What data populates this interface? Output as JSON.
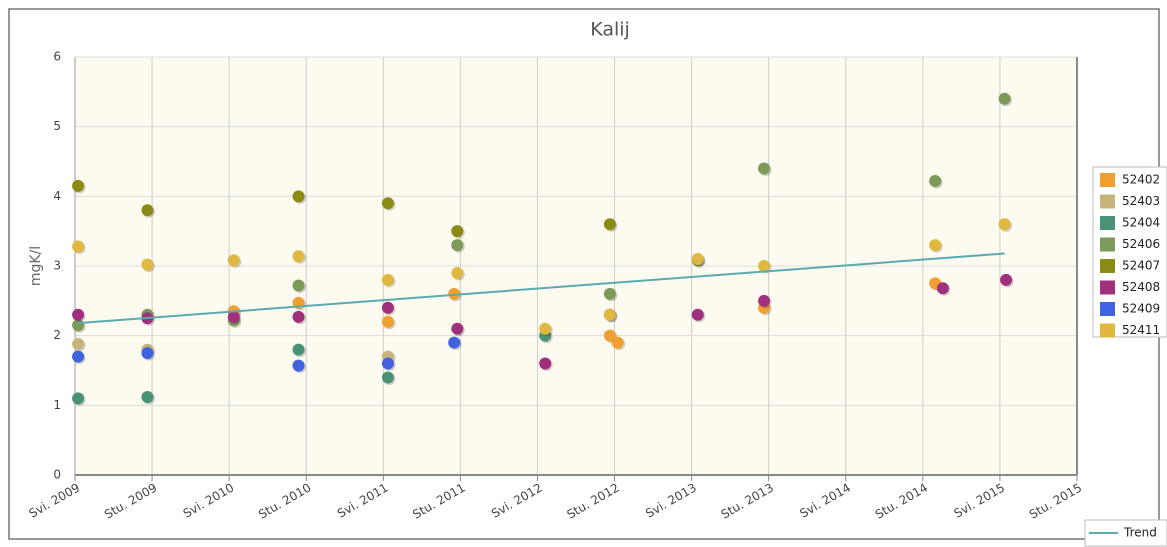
{
  "chart_data": {
    "type": "scatter",
    "title": "Kalij",
    "y_label": "mgK/l",
    "xlim": [
      2009.33,
      2015.83
    ],
    "xticks": [
      {
        "value": 2009.33,
        "label": "Svi. 2009"
      },
      {
        "value": 2009.83,
        "label": "Stu. 2009"
      },
      {
        "value": 2010.33,
        "label": "Svi. 2010"
      },
      {
        "value": 2010.83,
        "label": "Stu. 2010"
      },
      {
        "value": 2011.33,
        "label": "Svi. 2011"
      },
      {
        "value": 2011.83,
        "label": "Stu. 2011"
      },
      {
        "value": 2012.33,
        "label": "Svi. 2012"
      },
      {
        "value": 2012.83,
        "label": "Stu. 2012"
      },
      {
        "value": 2013.33,
        "label": "Svi. 2013"
      },
      {
        "value": 2013.83,
        "label": "Stu. 2013"
      },
      {
        "value": 2014.33,
        "label": "Svi. 2014"
      },
      {
        "value": 2014.83,
        "label": "Stu. 2014"
      },
      {
        "value": 2015.33,
        "label": "Svi. 2015"
      },
      {
        "value": 2015.83,
        "label": "Stu. 2015"
      }
    ],
    "ylim": [
      0,
      6
    ],
    "yticks": [
      0,
      1,
      2,
      3,
      4,
      5,
      6
    ],
    "grid": true,
    "series": [
      {
        "name": "52402",
        "color": "#f0a030",
        "x": [
          2010.36,
          2010.78,
          2011.36,
          2011.79,
          2012.8,
          2012.85,
          2013.8,
          2014.91
        ],
        "values": [
          2.35,
          2.47,
          2.2,
          2.6,
          2.0,
          1.9,
          2.4,
          2.75
        ]
      },
      {
        "name": "52403",
        "color": "#c8b47a",
        "x": [
          2009.35,
          2009.8,
          2011.36
        ],
        "values": [
          1.88,
          1.8,
          1.7
        ]
      },
      {
        "name": "52404",
        "color": "#4a9275",
        "x": [
          2009.35,
          2009.8,
          2010.78,
          2011.36,
          2012.38
        ],
        "values": [
          1.1,
          1.12,
          1.8,
          1.4,
          2.0
        ]
      },
      {
        "name": "52406",
        "color": "#7c9a58",
        "x": [
          2009.35,
          2009.8,
          2010.36,
          2010.78,
          2011.81,
          2012.8,
          2013.37,
          2013.8,
          2014.91,
          2015.36
        ],
        "values": [
          2.15,
          2.3,
          2.22,
          2.72,
          3.3,
          2.6,
          3.08,
          4.4,
          4.22,
          5.4
        ]
      },
      {
        "name": "52407",
        "color": "#8a8a14",
        "x": [
          2009.35,
          2009.8,
          2010.78,
          2011.36,
          2011.81,
          2012.8
        ],
        "values": [
          4.15,
          3.8,
          4.0,
          3.9,
          3.5,
          3.6
        ]
      },
      {
        "name": "52408",
        "color": "#a0307e",
        "x": [
          2009.35,
          2009.8,
          2010.36,
          2010.78,
          2011.36,
          2011.81,
          2012.38,
          2012.8,
          2013.37,
          2013.8,
          2014.96,
          2015.37
        ],
        "values": [
          2.3,
          2.25,
          2.27,
          2.27,
          2.4,
          2.1,
          1.6,
          2.3,
          2.3,
          2.5,
          2.68,
          2.8
        ]
      },
      {
        "name": "52409",
        "color": "#4062e0",
        "x": [
          2009.35,
          2009.8,
          2010.78,
          2011.36,
          2011.79
        ],
        "values": [
          1.7,
          1.75,
          1.57,
          1.6,
          1.9
        ]
      },
      {
        "name": "52411",
        "color": "#e0b840",
        "x": [
          2009.35,
          2009.8,
          2010.36,
          2010.78,
          2011.36,
          2011.81,
          2012.38,
          2012.8,
          2013.37,
          2013.8,
          2014.91,
          2015.36
        ],
        "values": [
          3.28,
          3.02,
          3.08,
          3.14,
          2.8,
          2.9,
          2.1,
          2.3,
          3.1,
          3.0,
          3.3,
          3.6
        ]
      },
      {
        "name": "Trend",
        "type": "line",
        "color": "#5aaab0",
        "x": [
          2009.35,
          2015.36
        ],
        "values": [
          2.18,
          3.18
        ]
      }
    ]
  }
}
